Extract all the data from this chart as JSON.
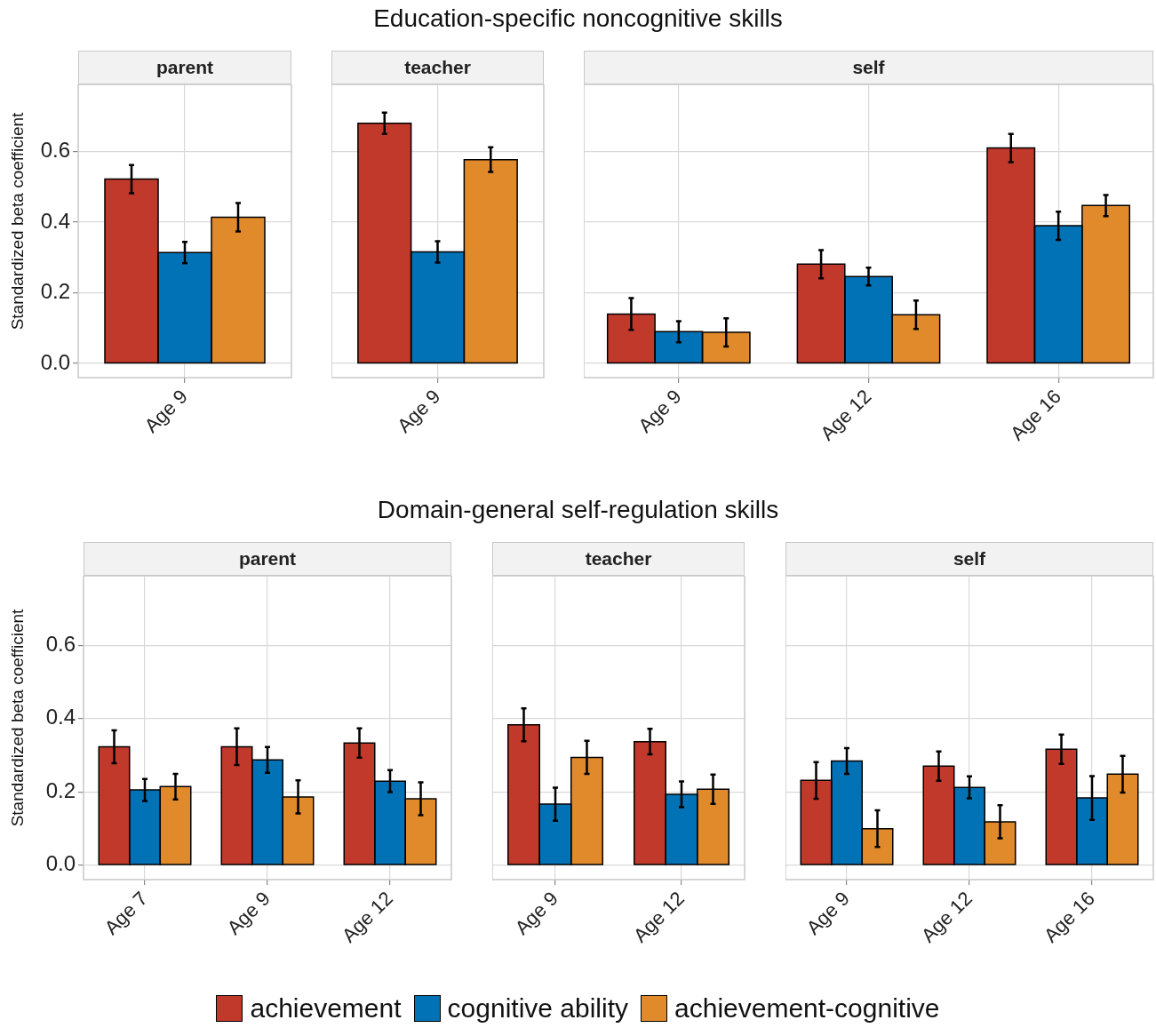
{
  "chart_data": [
    {
      "type": "other",
      "title": "Education-specific noncognitive skills"
    },
    {
      "type": "bar",
      "title": "parent",
      "ylabel": "Standardized beta coefficient",
      "categories": [
        "Age 9"
      ],
      "ylim": [
        -0.04,
        0.79
      ],
      "yticks": [
        {
          "value": 0,
          "label": "0.0"
        },
        {
          "value": 0.2,
          "label": "0.2"
        },
        {
          "value": 0.4,
          "label": "0.4"
        },
        {
          "value": 0.6,
          "label": "0.6"
        }
      ],
      "grid": true,
      "series": [
        {
          "color": "#c0392b",
          "values": [
            0.522
          ],
          "errors": [
            0.04
          ]
        },
        {
          "color": "#0072b5",
          "values": [
            0.314
          ],
          "errors": [
            0.03
          ]
        },
        {
          "color": "#e08a2c",
          "values": [
            0.414
          ],
          "errors": [
            0.04
          ]
        }
      ]
    },
    {
      "type": "bar",
      "title": "teacher",
      "categories": [
        "Age 9"
      ],
      "ylim": [
        -0.04,
        0.79
      ],
      "yticks": [
        0,
        0.2,
        0.4,
        0.6
      ],
      "grid": true,
      "tick_labels": "x",
      "series": [
        {
          "color": "#c0392b",
          "values": [
            0.68
          ],
          "errors": [
            0.03
          ]
        },
        {
          "color": "#0072b5",
          "values": [
            0.316
          ],
          "errors": [
            0.03
          ]
        },
        {
          "color": "#e08a2c",
          "values": [
            0.577
          ],
          "errors": [
            0.035
          ]
        }
      ]
    },
    {
      "type": "bar",
      "title": "self",
      "categories": [
        "Age 9",
        "Age 12",
        "Age 16"
      ],
      "ylim": [
        -0.04,
        0.79
      ],
      "yticks": [
        0,
        0.2,
        0.4,
        0.6
      ],
      "grid": true,
      "tick_labels": "x",
      "series": [
        {
          "color": "#c0392b",
          "values": [
            0.14,
            0.281,
            0.61
          ],
          "errors": [
            0.045,
            0.04,
            0.04
          ]
        },
        {
          "color": "#0072b5",
          "values": [
            0.09,
            0.246,
            0.39
          ],
          "errors": [
            0.03,
            0.025,
            0.04
          ]
        },
        {
          "color": "#e08a2c",
          "values": [
            0.088,
            0.138,
            0.447
          ],
          "errors": [
            0.04,
            0.04,
            0.03
          ]
        }
      ]
    },
    {
      "type": "other",
      "title": "Domain-general self-regulation skills"
    },
    {
      "type": "bar",
      "title": "parent",
      "ylabel": "Standardized beta coefficient",
      "categories": [
        "Age 7",
        "Age 9",
        "Age 12"
      ],
      "ylim": [
        -0.04,
        0.79
      ],
      "yticks": [
        {
          "value": 0,
          "label": "0.0"
        },
        {
          "value": 0.2,
          "label": "0.2"
        },
        {
          "value": 0.4,
          "label": "0.4"
        },
        {
          "value": 0.6,
          "label": "0.6"
        }
      ],
      "grid": true,
      "series": [
        {
          "color": "#c0392b",
          "values": [
            0.323,
            0.323,
            0.333
          ],
          "errors": [
            0.045,
            0.05,
            0.04
          ]
        },
        {
          "color": "#0072b5",
          "values": [
            0.205,
            0.287,
            0.229
          ],
          "errors": [
            0.03,
            0.035,
            0.03
          ]
        },
        {
          "color": "#e08a2c",
          "values": [
            0.214,
            0.186,
            0.181
          ],
          "errors": [
            0.035,
            0.045,
            0.045
          ]
        }
      ]
    },
    {
      "type": "bar",
      "title": "teacher",
      "categories": [
        "Age 9",
        "Age 12"
      ],
      "ylim": [
        -0.04,
        0.79
      ],
      "yticks": [
        0,
        0.2,
        0.4,
        0.6
      ],
      "grid": true,
      "tick_labels": "x",
      "series": [
        {
          "color": "#c0392b",
          "values": [
            0.383,
            0.337
          ],
          "errors": [
            0.045,
            0.035
          ]
        },
        {
          "color": "#0072b5",
          "values": [
            0.166,
            0.193
          ],
          "errors": [
            0.045,
            0.035
          ]
        },
        {
          "color": "#e08a2c",
          "values": [
            0.294,
            0.207
          ],
          "errors": [
            0.045,
            0.04
          ]
        }
      ]
    },
    {
      "type": "bar",
      "title": "self",
      "categories": [
        "Age 9",
        "Age 12",
        "Age 16"
      ],
      "ylim": [
        -0.04,
        0.79
      ],
      "yticks": [
        0,
        0.2,
        0.4,
        0.6
      ],
      "grid": true,
      "tick_labels": "x",
      "legend": "bottom",
      "series": [
        {
          "name": "achievement",
          "color": "#c0392b",
          "values": [
            0.231,
            0.27,
            0.316
          ],
          "errors": [
            0.05,
            0.04,
            0.04
          ]
        },
        {
          "name": "cognitive ability",
          "color": "#0072b5",
          "values": [
            0.284,
            0.212,
            0.183
          ],
          "errors": [
            0.035,
            0.03,
            0.06
          ]
        },
        {
          "name": "achievement-cognitive",
          "color": "#e08a2c",
          "values": [
            0.099,
            0.118,
            0.248
          ],
          "errors": [
            0.05,
            0.045,
            0.05
          ]
        }
      ]
    }
  ]
}
